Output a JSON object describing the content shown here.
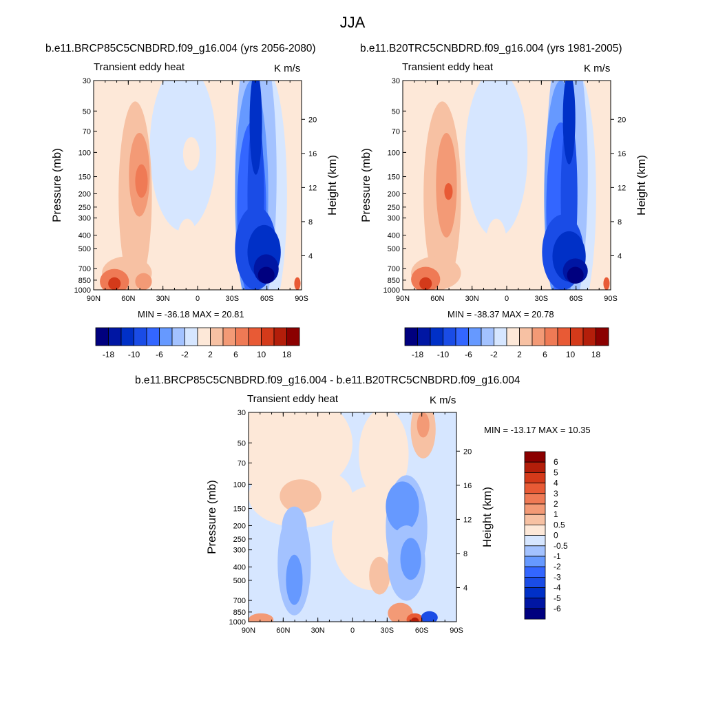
{
  "main_title": "JJA",
  "units": "K m/s",
  "variable_label": "Transient eddy heat",
  "axes": {
    "y_left_label": "Pressure (mb)",
    "y_right_label": "Height (km)",
    "pressure_ticks": [
      30,
      50,
      70,
      100,
      150,
      200,
      250,
      300,
      400,
      500,
      700,
      850,
      1000
    ],
    "height_ticks": [
      4,
      8,
      12,
      16,
      20
    ],
    "x_ticks": [
      "90N",
      "60N",
      "30N",
      "0",
      "30S",
      "60S",
      "90S"
    ]
  },
  "panels": [
    {
      "title": "b.e11.BRCP85C5CNBDRD.f09_g16.004 (yrs 2056-2080)",
      "minmax_text": "MIN = -36.18  MAX = 20.81"
    },
    {
      "title": "b.e11.B20TRC5CNBDRD.f09_g16.004 (yrs 1981-2005)",
      "minmax_text": "MIN = -38.37  MAX = 20.78"
    },
    {
      "title": "b.e11.BRCP85C5CNBDRD.f09_g16.004 - b.e11.B20TRC5CNBDRD.f09_g16.004",
      "minmax_text": "MIN = -13.17  MAX =  10.35"
    }
  ],
  "colorbar_main": {
    "labels": [
      "-18",
      "-10",
      "-6",
      "-2",
      "2",
      "6",
      "10",
      "18"
    ],
    "colors": [
      "#00007f",
      "#0016a3",
      "#0030c7",
      "#1a4ce6",
      "#3366ff",
      "#6699ff",
      "#a3c2ff",
      "#d6e6ff",
      "#fde8d8",
      "#f7c1a3",
      "#f39a76",
      "#ef7a55",
      "#e85a35",
      "#d43a1a",
      "#b31e0a",
      "#8b0000"
    ]
  },
  "colorbar_diff": {
    "labels": [
      "6",
      "5",
      "4",
      "3",
      "2",
      "1",
      "0.5",
      "0",
      "-0.5",
      "-1",
      "-2",
      "-3",
      "-4",
      "-5",
      "-6"
    ],
    "colors": [
      "#8b0000",
      "#b31e0a",
      "#d43a1a",
      "#e85a35",
      "#ef7a55",
      "#f39a76",
      "#f7c1a3",
      "#fde8d8",
      "#d6e6ff",
      "#a3c2ff",
      "#6699ff",
      "#3366ff",
      "#1a4ce6",
      "#0030c7",
      "#0016a3",
      "#00007f"
    ]
  },
  "chart_data": [
    {
      "type": "heatmap",
      "title": "b.e11.BRCP85C5CNBDRD.f09_g16.004 (yrs 2056-2080)",
      "xlabel": "",
      "ylabel": "Pressure (mb)",
      "y2label": "Height (km)",
      "x_range": [
        "90N",
        "90S"
      ],
      "y_range_mb": [
        1000,
        30
      ],
      "min": -36.18,
      "max": 20.81,
      "features": [
        {
          "name": "positive flux NH upper troposphere",
          "lat": 55,
          "p_mb": 150,
          "value": 8
        },
        {
          "name": "positive flux NH surface",
          "lat": 75,
          "p_mb": 950,
          "value": 20
        },
        {
          "name": "negative flux SH storm track column",
          "lat": -50,
          "p_mb": 200,
          "value": -20
        },
        {
          "name": "negative flux SH lower troposphere",
          "lat": -55,
          "p_mb": 800,
          "value": -36
        }
      ]
    },
    {
      "type": "heatmap",
      "title": "b.e11.B20TRC5CNBDRD.f09_g16.004 (yrs 1981-2005)",
      "xlabel": "",
      "ylabel": "Pressure (mb)",
      "y2label": "Height (km)",
      "x_range": [
        "90N",
        "90S"
      ],
      "y_range_mb": [
        1000,
        30
      ],
      "min": -38.37,
      "max": 20.78,
      "features": [
        {
          "name": "positive flux NH upper troposphere",
          "lat": 52,
          "p_mb": 180,
          "value": 10
        },
        {
          "name": "positive flux NH surface",
          "lat": 72,
          "p_mb": 950,
          "value": 20
        },
        {
          "name": "negative flux SH storm track column",
          "lat": -50,
          "p_mb": 200,
          "value": -22
        },
        {
          "name": "negative flux SH lower troposphere",
          "lat": -52,
          "p_mb": 800,
          "value": -38
        }
      ]
    },
    {
      "type": "heatmap",
      "title": "b.e11.BRCP85C5CNBDRD.f09_g16.004 - b.e11.B20TRC5CNBDRD.f09_g16.004",
      "xlabel": "",
      "ylabel": "Pressure (mb)",
      "y2label": "Height (km)",
      "x_range": [
        "90N",
        "90S"
      ],
      "y_range_mb": [
        1000,
        30
      ],
      "min": -13.17,
      "max": 10.35,
      "features": [
        {
          "name": "positive SH stratosphere",
          "lat": -60,
          "p_mb": 50,
          "value": 2
        },
        {
          "name": "negative SH upper troposphere",
          "lat": -45,
          "p_mb": 150,
          "value": -3
        },
        {
          "name": "negative SH mid troposphere",
          "lat": -50,
          "p_mb": 350,
          "value": -3
        },
        {
          "name": "negative NH mid-lower troposphere",
          "lat": 50,
          "p_mb": 500,
          "value": -1.5
        },
        {
          "name": "positive SH surface",
          "lat": -60,
          "p_mb": 1000,
          "value": 10
        }
      ]
    }
  ]
}
